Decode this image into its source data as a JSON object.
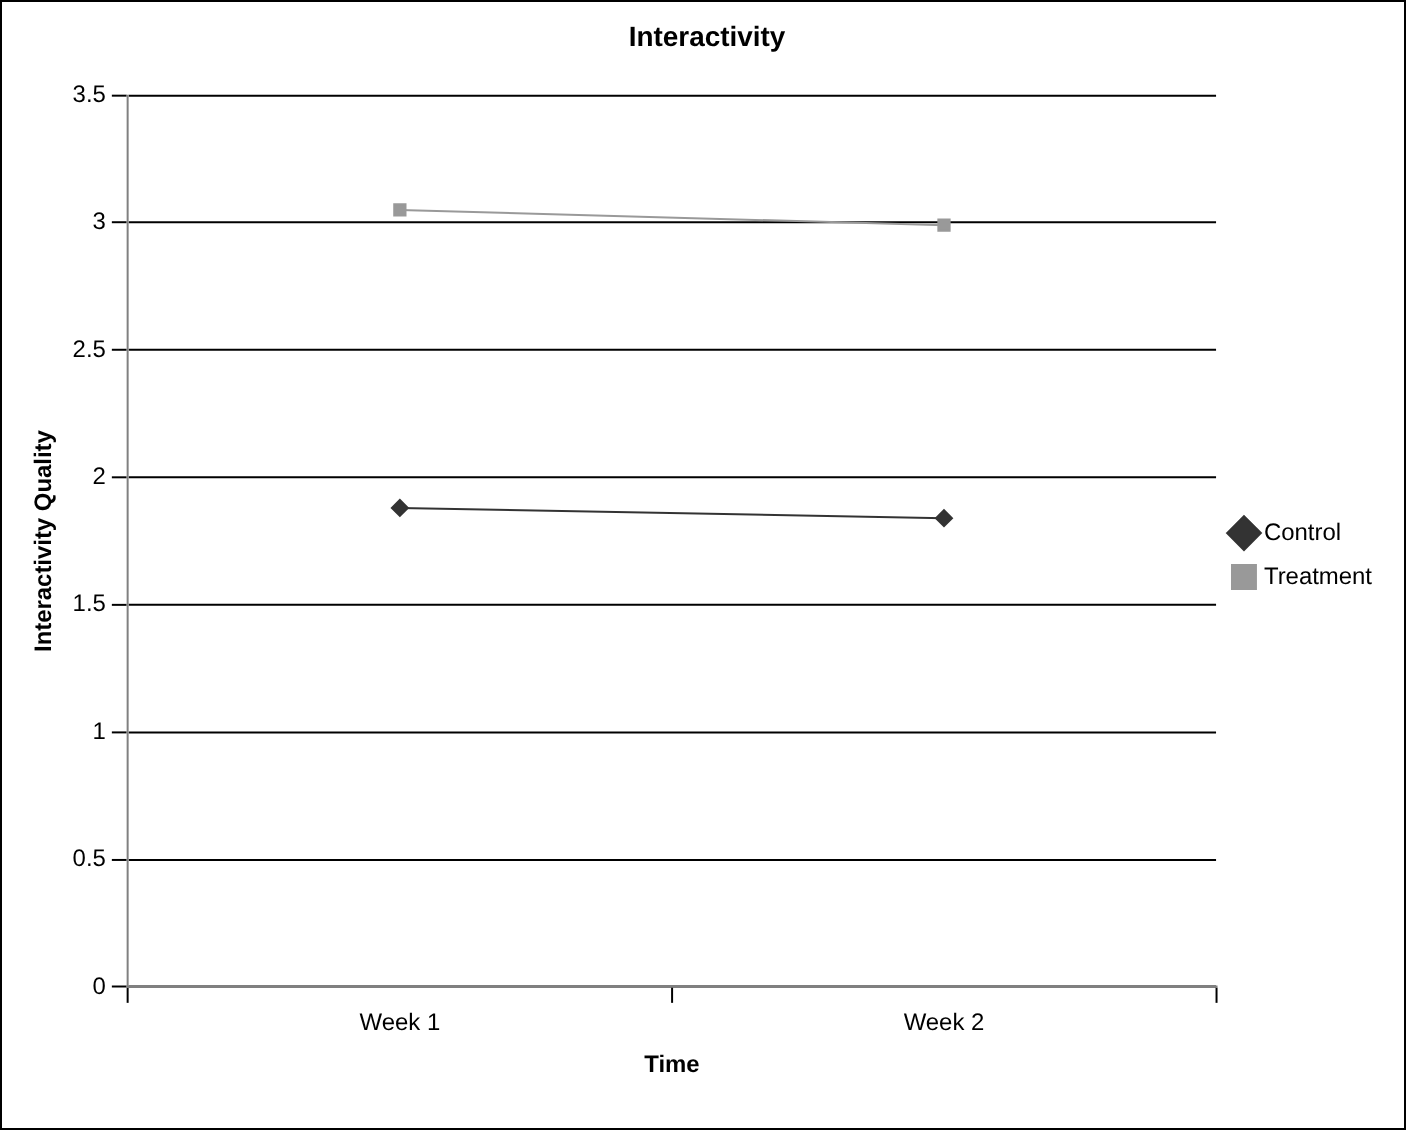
{
  "chart_data": {
    "type": "line",
    "title": "Interactivity",
    "xlabel": "Time",
    "ylabel": "Interactivity Quality",
    "categories": [
      "Week 1",
      "Week 2"
    ],
    "series": [
      {
        "name": "Control",
        "color": "#333333",
        "marker": "diamond",
        "values": [
          1.88,
          1.84
        ]
      },
      {
        "name": "Treatment",
        "color": "#999999",
        "marker": "square",
        "values": [
          3.05,
          2.99
        ]
      }
    ],
    "ylim": [
      0,
      3.5
    ],
    "yticks": [
      0,
      0.5,
      1,
      1.5,
      2,
      2.5,
      3,
      3.5
    ],
    "grid": "y",
    "legend": "right",
    "line_style": "solid"
  }
}
